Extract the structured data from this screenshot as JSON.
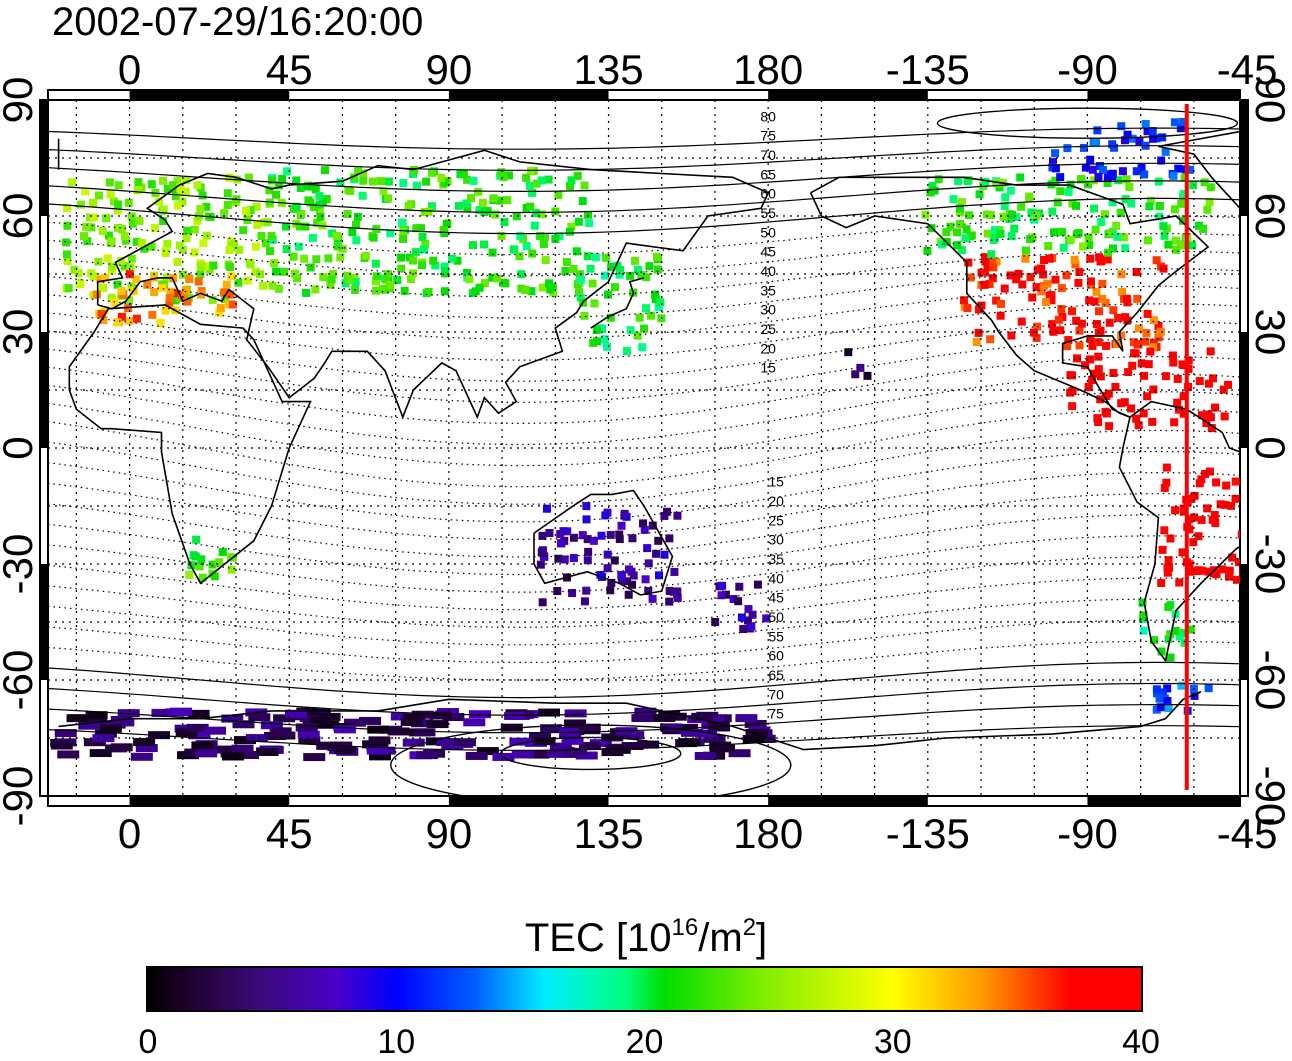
{
  "title": "2002-07-29/16:20:00",
  "map": {
    "lon_ticks_top": [
      "0",
      "45",
      "90",
      "135",
      "180",
      "-135",
      "-90",
      "-45"
    ],
    "lon_ticks_bottom": [
      "0",
      "45",
      "90",
      "135",
      "180",
      "-135",
      "-90",
      "-45"
    ],
    "lat_ticks_left": [
      "90",
      "60",
      "30",
      "0",
      "-30",
      "-60",
      "-90"
    ],
    "lat_ticks_right": [
      "90",
      "60",
      "30",
      "0",
      "-30",
      "-60",
      "-90"
    ],
    "lon_range": [
      -23,
      313
    ],
    "lat_range": [
      -90,
      90
    ],
    "grid": "dotted 15°",
    "contour_labels_north": [
      "80",
      "75",
      "70",
      "65",
      "60",
      "55",
      "50",
      "45",
      "40",
      "35",
      "30",
      "25",
      "20",
      "15"
    ],
    "contour_labels_south": [
      "15",
      "20",
      "25",
      "30",
      "35",
      "40",
      "45",
      "50",
      "55",
      "60",
      "65",
      "70",
      "75"
    ],
    "terminator_longitude": -62,
    "terminator_color": "#ff0000"
  },
  "colorbar": {
    "label_main": "TEC  [10",
    "label_sup1": "16",
    "label_mid": "/m",
    "label_sup2": "2",
    "label_end": "]",
    "min": 0,
    "max": 40,
    "ticks": [
      "0",
      "10",
      "20",
      "30",
      "40"
    ],
    "colormap": [
      "#000000",
      "#4a00c8",
      "#0000ff",
      "#00eeff",
      "#00dd00",
      "#ffff00",
      "#ff9900",
      "#ff0000"
    ]
  },
  "tec_regions": [
    {
      "name": "Europe",
      "lon": [
        -18,
        40
      ],
      "lat": [
        38,
        70
      ],
      "tec": 25
    },
    {
      "name": "Southern Europe",
      "lon": [
        -10,
        30
      ],
      "lat": [
        32,
        45
      ],
      "tec": 34
    },
    {
      "name": "Russia",
      "lon": [
        40,
        130
      ],
      "lat": [
        40,
        72
      ],
      "tec": 22
    },
    {
      "name": "Japan",
      "lon": [
        125,
        150
      ],
      "lat": [
        25,
        50
      ],
      "tec": 21
    },
    {
      "name": "Central US",
      "lon": [
        -125,
        -68
      ],
      "lat": [
        26,
        50
      ],
      "tec": 37
    },
    {
      "name": "Canada",
      "lon": [
        -140,
        -55
      ],
      "lat": [
        50,
        70
      ],
      "tec": 22
    },
    {
      "name": "Arctic Canada",
      "lon": [
        -100,
        -60
      ],
      "lat": [
        70,
        85
      ],
      "tec": 11
    },
    {
      "name": "Caribbean",
      "lon": [
        -95,
        -50
      ],
      "lat": [
        5,
        25
      ],
      "tec": 40
    },
    {
      "name": "South America east",
      "lon": [
        -70,
        -35
      ],
      "lat": [
        -35,
        -5
      ],
      "tec": 40
    },
    {
      "name": "Patagonia",
      "lon": [
        -75,
        -60
      ],
      "lat": [
        -55,
        -40
      ],
      "tec": 20
    },
    {
      "name": "Antarctic Peninsula",
      "lon": [
        -75,
        -55
      ],
      "lat": [
        -68,
        -60
      ],
      "tec": 12
    },
    {
      "name": "Australia",
      "lon": [
        115,
        155
      ],
      "lat": [
        -40,
        -15
      ],
      "tec": 6
    },
    {
      "name": "New Zealand",
      "lon": [
        165,
        180
      ],
      "lat": [
        -48,
        -35
      ],
      "tec": 6
    },
    {
      "name": "Antarctica",
      "lon": [
        -20,
        180
      ],
      "lat": [
        -80,
        -68
      ],
      "tec": 4
    },
    {
      "name": "Hawaii",
      "lon": [
        -158,
        -150
      ],
      "lat": [
        18,
        25
      ],
      "tec": 3
    },
    {
      "name": "Africa south",
      "lon": [
        15,
        30
      ],
      "lat": [
        -35,
        -20
      ],
      "tec": 23
    }
  ]
}
